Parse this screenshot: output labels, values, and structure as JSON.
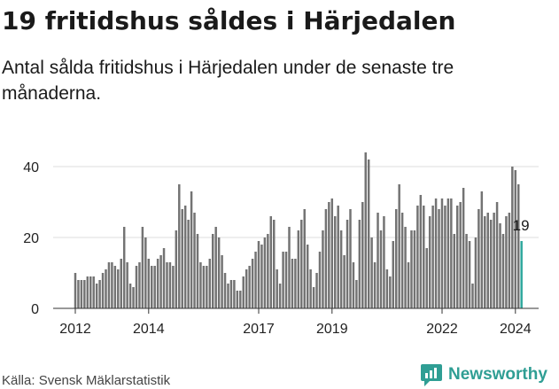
{
  "title": "19 fritidshus såldes i Härjedalen",
  "subtitle": "Antal sålda fritidshus i Härjedalen under de senaste tre månaderna.",
  "source": "Källa: Svensk Mäklarstatistik",
  "brand": "Newsworthy",
  "colors": {
    "bar": "#737373",
    "highlight": "#2ea89d",
    "axis": "#333333",
    "grid": "#dddddd",
    "brand": "#2f9e94"
  },
  "chart_data": {
    "type": "bar",
    "title": "19 fritidshus såldes i Härjedalen",
    "xlabel": "",
    "ylabel": "",
    "ylim": [
      0,
      45
    ],
    "yticks": [
      0,
      20,
      40
    ],
    "x_start": 2012.0,
    "x_step": 0.08333,
    "xticks": [
      "2012",
      "2014",
      "2017",
      "2019",
      "2022",
      "2024"
    ],
    "xtick_values": [
      2012,
      2014,
      2017,
      2019,
      2022,
      2024
    ],
    "highlight_index": 146,
    "highlight_label": "19",
    "values": [
      10,
      8,
      8,
      8,
      9,
      9,
      9,
      7,
      8,
      10,
      11,
      13,
      13,
      12,
      11,
      14,
      23,
      13,
      7,
      6,
      12,
      13,
      23,
      20,
      14,
      12,
      12,
      14,
      15,
      17,
      13,
      13,
      12,
      22,
      35,
      28,
      29,
      25,
      33,
      27,
      21,
      13,
      12,
      12,
      14,
      21,
      23,
      20,
      15,
      10,
      7,
      8,
      8,
      5,
      5,
      9,
      11,
      12,
      14,
      16,
      19,
      18,
      20,
      21,
      26,
      25,
      11,
      7,
      16,
      16,
      23,
      14,
      14,
      22,
      25,
      28,
      18,
      11,
      6,
      10,
      16,
      22,
      28,
      30,
      31,
      26,
      29,
      22,
      15,
      25,
      28,
      13,
      8,
      25,
      30,
      44,
      42,
      20,
      13,
      27,
      22,
      26,
      11,
      9,
      19,
      28,
      35,
      27,
      23,
      13,
      22,
      22,
      29,
      32,
      29,
      17,
      26,
      29,
      31,
      28,
      31,
      29,
      31,
      31,
      21,
      29,
      30,
      34,
      21,
      19,
      7,
      20,
      28,
      33,
      26,
      27,
      25,
      27,
      30,
      24,
      21,
      26,
      27,
      40,
      39,
      35,
      19
    ]
  }
}
